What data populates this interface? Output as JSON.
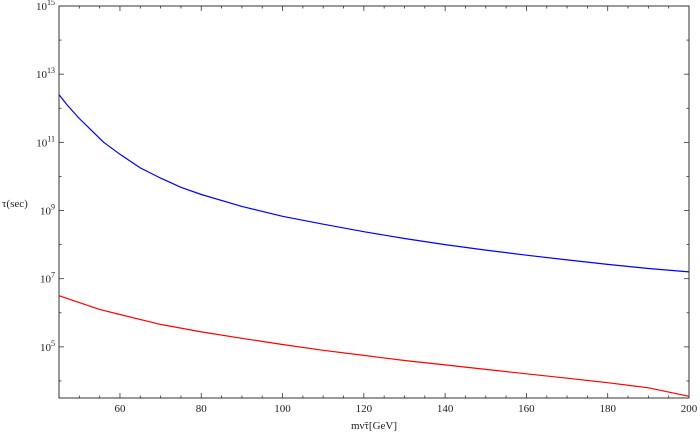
{
  "chart_data": {
    "type": "line",
    "title": "",
    "xlabel": "mν̃τ[GeV]",
    "ylabel": "τ(sec)",
    "xlim": [
      45,
      200
    ],
    "ylim": [
      3.5,
      15
    ],
    "y_scale": "log10",
    "x_ticks": [
      60,
      80,
      100,
      120,
      140,
      160,
      180,
      200
    ],
    "y_ticks": [
      {
        "base": "10",
        "exp": "5"
      },
      {
        "base": "10",
        "exp": "7"
      },
      {
        "base": "10",
        "exp": "9"
      },
      {
        "base": "10",
        "exp": "11"
      },
      {
        "base": "10",
        "exp": "13"
      },
      {
        "base": "10",
        "exp": "15"
      }
    ],
    "y_tick_values": [
      5,
      7,
      9,
      11,
      13,
      15
    ],
    "series": [
      {
        "color": "#0000ff",
        "x": [
          45,
          47,
          50,
          53,
          56,
          60,
          65,
          70,
          75,
          80,
          90,
          100,
          110,
          120,
          130,
          140,
          150,
          160,
          170,
          180,
          190,
          200
        ],
        "y": [
          12.4,
          12.1,
          11.7,
          11.35,
          11.0,
          10.65,
          10.25,
          9.95,
          9.68,
          9.47,
          9.12,
          8.83,
          8.6,
          8.38,
          8.18,
          8.0,
          7.84,
          7.69,
          7.55,
          7.42,
          7.3,
          7.2
        ]
      },
      {
        "color": "#ff0000",
        "x": [
          45,
          50,
          55,
          60,
          70,
          80,
          90,
          100,
          110,
          120,
          130,
          140,
          150,
          160,
          170,
          180,
          190,
          200
        ],
        "y": [
          6.5,
          6.3,
          6.1,
          5.95,
          5.66,
          5.44,
          5.25,
          5.07,
          4.9,
          4.75,
          4.6,
          4.47,
          4.34,
          4.21,
          4.08,
          3.95,
          3.8,
          3.55
        ]
      }
    ]
  }
}
